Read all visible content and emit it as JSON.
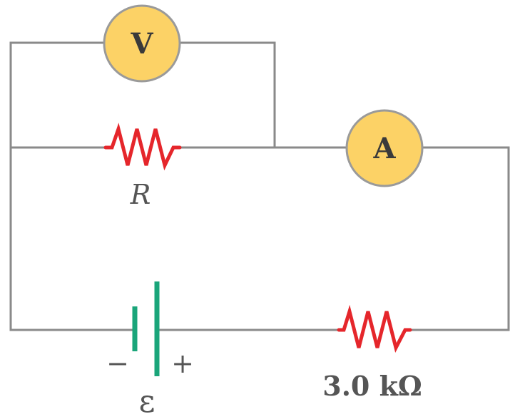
{
  "voltmeter": {
    "symbol": "V"
  },
  "ammeter": {
    "symbol": "A"
  },
  "resistor_r": {
    "label": "R"
  },
  "resistor_fixed": {
    "label": "3.0 kΩ"
  },
  "battery": {
    "label": "ε",
    "negative_sign": "−",
    "positive_sign": "+"
  },
  "colors": {
    "wire": "#8a8a8a",
    "resistor": "#e5262b",
    "meter_fill": "#fcd266",
    "battery_plate": "#1aa57a",
    "text": "#555555"
  }
}
